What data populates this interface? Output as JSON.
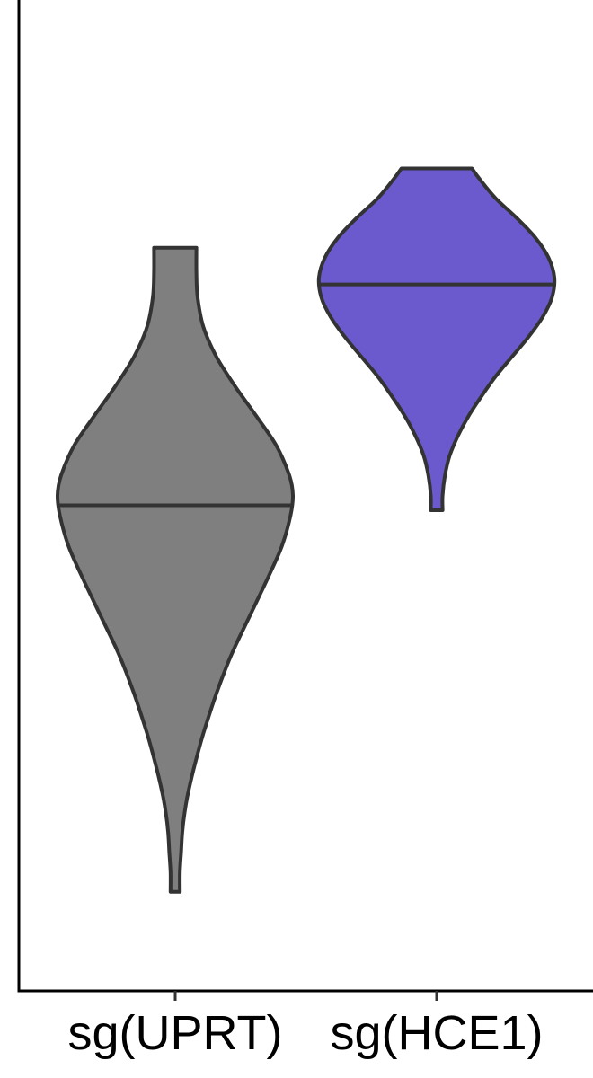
{
  "chart_data": {
    "type": "violin",
    "title": "",
    "xlabel": "",
    "ylabel": "",
    "ylim": [
      0,
      100
    ],
    "grid": false,
    "categories": [
      "sg(UPRT)",
      "sg(HCE1)"
    ],
    "series": [
      {
        "category": "sg(UPRT)",
        "color": "#7F7F7F",
        "median": 49.0,
        "min": 10.0,
        "max": 75.0,
        "density": [
          {
            "y": 10.0,
            "w": 0.04
          },
          {
            "y": 12.0,
            "w": 0.04
          },
          {
            "y": 14.0,
            "w": 0.05
          },
          {
            "y": 16.0,
            "w": 0.06
          },
          {
            "y": 18.0,
            "w": 0.08
          },
          {
            "y": 20.0,
            "w": 0.11
          },
          {
            "y": 23.0,
            "w": 0.17
          },
          {
            "y": 26.0,
            "w": 0.24
          },
          {
            "y": 30.0,
            "w": 0.35
          },
          {
            "y": 34.0,
            "w": 0.48
          },
          {
            "y": 38.0,
            "w": 0.64
          },
          {
            "y": 42.0,
            "w": 0.8
          },
          {
            "y": 45.0,
            "w": 0.91
          },
          {
            "y": 48.0,
            "w": 0.98
          },
          {
            "y": 50.0,
            "w": 1.0
          },
          {
            "y": 52.0,
            "w": 0.97
          },
          {
            "y": 55.0,
            "w": 0.86
          },
          {
            "y": 58.0,
            "w": 0.69
          },
          {
            "y": 61.0,
            "w": 0.51
          },
          {
            "y": 64.0,
            "w": 0.35
          },
          {
            "y": 67.0,
            "w": 0.24
          },
          {
            "y": 70.0,
            "w": 0.19
          },
          {
            "y": 72.5,
            "w": 0.18
          },
          {
            "y": 75.0,
            "w": 0.18
          }
        ]
      },
      {
        "category": "sg(HCE1)",
        "color": "#6A5ACD",
        "median": 71.3,
        "min": 48.5,
        "max": 83.0,
        "density": [
          {
            "y": 48.5,
            "w": 0.05
          },
          {
            "y": 50.0,
            "w": 0.05
          },
          {
            "y": 52.0,
            "w": 0.07
          },
          {
            "y": 54.0,
            "w": 0.11
          },
          {
            "y": 56.0,
            "w": 0.18
          },
          {
            "y": 58.0,
            "w": 0.27
          },
          {
            "y": 60.0,
            "w": 0.38
          },
          {
            "y": 62.0,
            "w": 0.5
          },
          {
            "y": 64.0,
            "w": 0.64
          },
          {
            "y": 66.0,
            "w": 0.78
          },
          {
            "y": 68.0,
            "w": 0.9
          },
          {
            "y": 70.0,
            "w": 0.98
          },
          {
            "y": 72.0,
            "w": 1.0
          },
          {
            "y": 74.0,
            "w": 0.95
          },
          {
            "y": 76.0,
            "w": 0.84
          },
          {
            "y": 78.0,
            "w": 0.68
          },
          {
            "y": 80.0,
            "w": 0.5
          },
          {
            "y": 82.0,
            "w": 0.36
          },
          {
            "y": 83.0,
            "w": 0.3
          }
        ]
      }
    ]
  }
}
